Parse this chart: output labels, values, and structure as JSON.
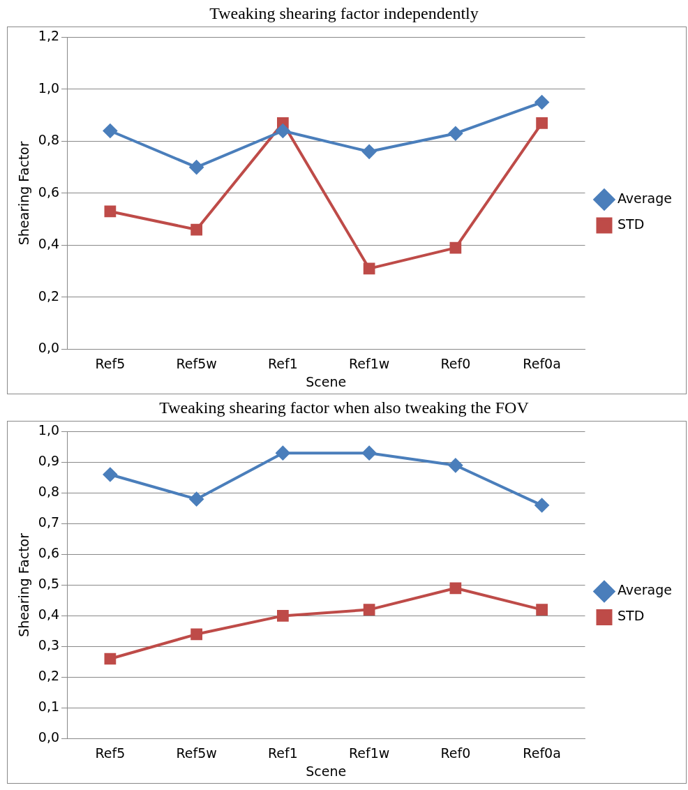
{
  "chart_data": [
    {
      "type": "line",
      "title": "Tweaking shearing factor independently",
      "xlabel": "Scene",
      "ylabel": "Shearing Factor",
      "categories": [
        "Ref5",
        "Ref5w",
        "Ref1",
        "Ref1w",
        "Ref0",
        "Ref0a"
      ],
      "series": [
        {
          "name": "Average",
          "color": "#4a7ebb",
          "marker": "diamond",
          "values": [
            0.84,
            0.7,
            0.84,
            0.76,
            0.83,
            0.95
          ]
        },
        {
          "name": "STD",
          "color": "#be4b48",
          "marker": "square",
          "values": [
            0.53,
            0.46,
            0.87,
            0.31,
            0.39,
            0.87
          ]
        }
      ],
      "ylim": [
        0,
        1.2
      ],
      "yticks": [
        {
          "value": 0,
          "label": "0,0"
        },
        {
          "value": 0.2,
          "label": "0,2"
        },
        {
          "value": 0.4,
          "label": "0,4"
        },
        {
          "value": 0.6,
          "label": "0,6"
        },
        {
          "value": 0.8,
          "label": "0,8"
        },
        {
          "value": 1.0,
          "label": "1,0"
        },
        {
          "value": 1.2,
          "label": "1,2"
        }
      ],
      "grid": "y",
      "legend": "right",
      "line_style": "solid"
    },
    {
      "type": "line",
      "title": "Tweaking shearing factor when also tweaking the FOV",
      "xlabel": "Scene",
      "ylabel": "Shearing Factor",
      "categories": [
        "Ref5",
        "Ref5w",
        "Ref1",
        "Ref1w",
        "Ref0",
        "Ref0a"
      ],
      "series": [
        {
          "name": "Average",
          "color": "#4a7ebb",
          "marker": "diamond",
          "values": [
            0.86,
            0.78,
            0.93,
            0.93,
            0.89,
            0.76
          ]
        },
        {
          "name": "STD",
          "color": "#be4b48",
          "marker": "square",
          "values": [
            0.26,
            0.34,
            0.4,
            0.42,
            0.49,
            0.42
          ]
        }
      ],
      "ylim": [
        0,
        1.0
      ],
      "yticks": [
        {
          "value": 0,
          "label": "0,0"
        },
        {
          "value": 0.1,
          "label": "0,1"
        },
        {
          "value": 0.2,
          "label": "0,2"
        },
        {
          "value": 0.3,
          "label": "0,3"
        },
        {
          "value": 0.4,
          "label": "0,4"
        },
        {
          "value": 0.5,
          "label": "0,5"
        },
        {
          "value": 0.6,
          "label": "0,6"
        },
        {
          "value": 0.7,
          "label": "0,7"
        },
        {
          "value": 0.8,
          "label": "0,8"
        },
        {
          "value": 0.9,
          "label": "0,9"
        },
        {
          "value": 1.0,
          "label": "1,0"
        }
      ],
      "grid": "y",
      "legend": "right",
      "line_style": "solid"
    }
  ]
}
